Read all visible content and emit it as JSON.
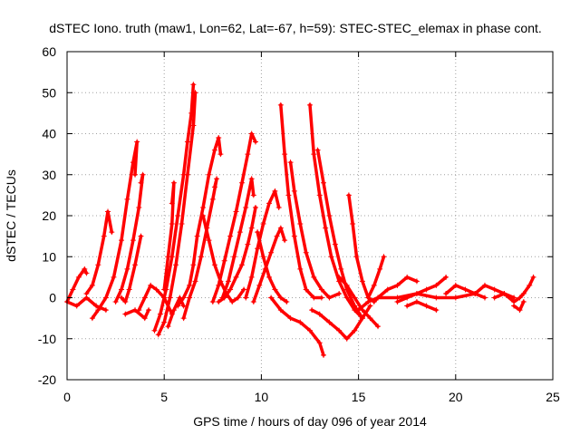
{
  "chart_data": {
    "type": "scatter",
    "title": "dSTEC Iono. truth (maw1, Lon=62, Lat=-67, h=59): STEC-STEC_elemax in phase cont.",
    "xlabel": "GPS time / hours of day 096 of year 2014",
    "ylabel": "dSTEC  / TECUs",
    "xlim": [
      0,
      25
    ],
    "ylim": [
      -20,
      60
    ],
    "x_ticks": [
      0,
      5,
      10,
      15,
      20,
      25
    ],
    "y_ticks": [
      -20,
      -10,
      0,
      10,
      20,
      30,
      40,
      50,
      60
    ],
    "grid": true,
    "marker": "+",
    "color": "#ff0000",
    "arcs": [
      {
        "x": [
          0.0,
          0.3,
          0.6,
          0.9,
          1.0
        ],
        "y": [
          -1,
          2,
          5,
          7,
          6
        ]
      },
      {
        "x": [
          1.0,
          1.3,
          1.6,
          1.9,
          2.1,
          2.3
        ],
        "y": [
          1,
          3,
          8,
          15,
          21,
          16
        ]
      },
      {
        "x": [
          1.3,
          1.6,
          2.0,
          2.4,
          2.8,
          3.1,
          3.4,
          3.6,
          3.5
        ],
        "y": [
          -5,
          -3,
          0,
          5,
          14,
          24,
          33,
          38,
          30
        ]
      },
      {
        "x": [
          2.5,
          2.8,
          3.1,
          3.4,
          3.7,
          3.9,
          3.8
        ],
        "y": [
          -1,
          2,
          7,
          14,
          22,
          30,
          28
        ]
      },
      {
        "x": [
          3.8,
          3.5,
          3.2,
          3.0,
          2.8
        ],
        "y": [
          15,
          8,
          2,
          -1,
          0
        ]
      },
      {
        "x": [
          3.7,
          4.0,
          4.3,
          4.6,
          5.0,
          5.4
        ],
        "y": [
          -3,
          0,
          3,
          2,
          0,
          -4
        ]
      },
      {
        "x": [
          4.5,
          4.8,
          5.1,
          5.4,
          5.7,
          6.0,
          6.2,
          6.4,
          6.5
        ],
        "y": [
          -8,
          -4,
          2,
          10,
          20,
          30,
          38,
          45,
          52
        ]
      },
      {
        "x": [
          4.7,
          5.0,
          5.3,
          5.6,
          5.9,
          6.2,
          6.5,
          6.6
        ],
        "y": [
          -9,
          -6,
          0,
          8,
          18,
          30,
          42,
          50
        ]
      },
      {
        "x": [
          5.0,
          5.2,
          5.4,
          5.5,
          5.4
        ],
        "y": [
          2,
          10,
          18,
          28,
          23
        ]
      },
      {
        "x": [
          5.2,
          5.5,
          5.8,
          6.0
        ],
        "y": [
          -7,
          -3,
          0,
          -2
        ]
      },
      {
        "x": [
          5.7,
          6.0,
          6.3,
          6.5,
          6.7,
          7.0,
          7.3,
          7.6,
          7.8,
          7.9
        ],
        "y": [
          -2,
          0,
          3,
          8,
          15,
          22,
          30,
          36,
          39,
          35
        ]
      },
      {
        "x": [
          6.0,
          6.3,
          6.6,
          6.9,
          7.2,
          7.5,
          7.7,
          7.6
        ],
        "y": [
          -5,
          0,
          4,
          10,
          17,
          24,
          29,
          27
        ]
      },
      {
        "x": [
          7.0,
          7.3,
          7.6,
          7.9,
          8.2,
          8.5,
          8.8,
          9.1
        ],
        "y": [
          20,
          14,
          8,
          4,
          1,
          -1,
          0,
          2
        ]
      },
      {
        "x": [
          7.5,
          7.8,
          8.1,
          8.4,
          8.7,
          9.0,
          9.3,
          9.5,
          9.7
        ],
        "y": [
          -1,
          3,
          9,
          15,
          21,
          28,
          35,
          40,
          38
        ]
      },
      {
        "x": [
          8.0,
          8.3,
          8.6,
          8.9,
          9.2,
          9.5,
          9.6
        ],
        "y": [
          0,
          4,
          10,
          16,
          22,
          29,
          25
        ]
      },
      {
        "x": [
          9.2,
          9.5,
          9.8,
          10.1,
          10.4,
          10.7,
          10.9
        ],
        "y": [
          0,
          5,
          12,
          18,
          23,
          26,
          22
        ]
      },
      {
        "x": [
          9.6,
          9.9,
          10.2,
          10.5,
          10.8,
          11.0,
          11.2
        ],
        "y": [
          -1,
          3,
          7,
          11,
          15,
          17,
          14
        ]
      },
      {
        "x": [
          9.7,
          9.5,
          9.3,
          9.0,
          8.7,
          8.4,
          8.1,
          7.8
        ],
        "y": [
          22,
          17,
          13,
          8,
          5,
          2,
          0,
          -1
        ]
      },
      {
        "x": [
          9.8,
          10.1,
          10.4,
          10.7,
          11.0,
          11.3
        ],
        "y": [
          16,
          10,
          5,
          2,
          0,
          -1
        ]
      },
      {
        "x": [
          11.0,
          11.2,
          11.4,
          11.7,
          12.0,
          12.3,
          12.7,
          13.1
        ],
        "y": [
          47,
          35,
          25,
          15,
          7,
          2,
          0,
          0
        ]
      },
      {
        "x": [
          11.5,
          11.7,
          12.0,
          12.3,
          12.7,
          13.1,
          13.5,
          14.0
        ],
        "y": [
          33,
          26,
          18,
          11,
          5,
          2,
          0,
          1
        ]
      },
      {
        "x": [
          12.5,
          12.7,
          13.0,
          13.3,
          13.6,
          14.0,
          14.4,
          14.8,
          15.2
        ],
        "y": [
          47,
          35,
          25,
          17,
          10,
          4,
          0,
          -3,
          -5
        ]
      },
      {
        "x": [
          12.9,
          13.2,
          13.5,
          13.8,
          14.1,
          14.4,
          14.8,
          15.2
        ],
        "y": [
          36,
          28,
          20,
          13,
          7,
          2,
          -2,
          -5
        ]
      },
      {
        "x": [
          10.5,
          11.0,
          11.5,
          12.0,
          12.5,
          13.0,
          13.2
        ],
        "y": [
          0,
          -3,
          -5,
          -6,
          -8,
          -11,
          -14
        ]
      },
      {
        "x": [
          12.6,
          13.0,
          13.5,
          14.0,
          14.4,
          14.8,
          15.2,
          15.6
        ],
        "y": [
          -3,
          -4,
          -6,
          -8,
          -10,
          -8,
          -5,
          -2
        ]
      },
      {
        "x": [
          14.5,
          14.7,
          14.9,
          15.2,
          15.5,
          15.8,
          16.0
        ],
        "y": [
          25,
          18,
          10,
          4,
          0,
          -1,
          0
        ]
      },
      {
        "x": [
          14.0,
          14.4,
          14.8,
          15.2,
          15.6,
          16.0
        ],
        "y": [
          5,
          3,
          0,
          -3,
          -5,
          -7
        ]
      },
      {
        "x": [
          15.0,
          15.5,
          16.0,
          16.5,
          17.0,
          17.5,
          18.0
        ],
        "y": [
          -3,
          -1,
          0,
          2,
          3,
          5,
          4
        ]
      },
      {
        "x": [
          15.5,
          15.8,
          16.1,
          16.3
        ],
        "y": [
          0,
          3,
          7,
          10
        ]
      },
      {
        "x": [
          16.0,
          17.0,
          18.0,
          19.0,
          20.0,
          21.0
        ],
        "y": [
          0,
          0,
          1,
          0,
          0,
          1
        ]
      },
      {
        "x": [
          17.0,
          17.5,
          18.0,
          18.5,
          19.0,
          19.5
        ],
        "y": [
          -1,
          0,
          1,
          2,
          3,
          5
        ]
      },
      {
        "x": [
          17.5,
          18.0,
          18.5,
          19.0
        ],
        "y": [
          -2,
          -1,
          -2,
          -3
        ]
      },
      {
        "x": [
          19.5,
          20.0,
          20.5,
          21.0,
          21.5
        ],
        "y": [
          1,
          3,
          2,
          1,
          0
        ]
      },
      {
        "x": [
          21.0,
          21.5,
          22.0,
          22.5,
          23.0
        ],
        "y": [
          1,
          3,
          2,
          1,
          0
        ]
      },
      {
        "x": [
          22.0,
          22.5,
          23.0,
          23.3,
          23.5,
          23.8,
          24.0
        ],
        "y": [
          0,
          1,
          -1,
          0,
          1,
          3,
          5
        ]
      },
      {
        "x": [
          23.0,
          23.3,
          23.5
        ],
        "y": [
          -2,
          -3,
          -1
        ]
      },
      {
        "x": [
          0.0,
          0.5,
          1.0,
          1.5,
          2.0
        ],
        "y": [
          -1,
          -2,
          0,
          -2,
          -3
        ]
      },
      {
        "x": [
          3.0,
          3.5,
          4.0,
          4.2
        ],
        "y": [
          -4,
          -3,
          -5,
          -3
        ]
      }
    ]
  }
}
